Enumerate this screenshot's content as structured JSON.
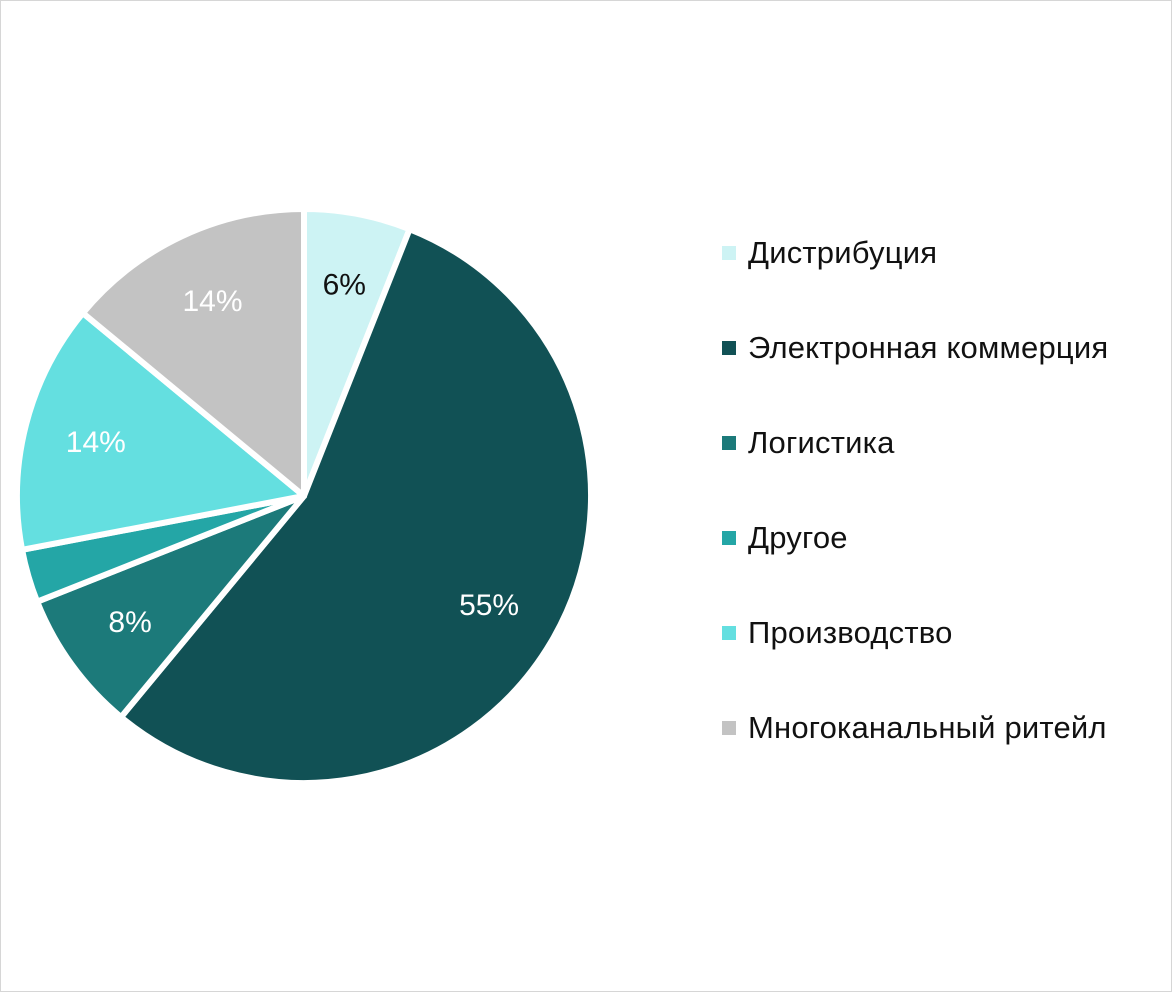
{
  "chart_data": {
    "type": "pie",
    "title": "",
    "start_angle_deg": 0,
    "direction": "clockwise",
    "slice_separator_color": "#ffffff",
    "legend_placement": "right",
    "slices": [
      {
        "name": "Дистрибуция",
        "value": 6,
        "label": "6%",
        "color": "#cdf3f4",
        "label_color": "#111111"
      },
      {
        "name": "Электронная коммерция",
        "value": 55,
        "label": "55%",
        "color": "#115155",
        "label_color": "#ffffff"
      },
      {
        "name": "Логистика",
        "value": 8,
        "label": "8%",
        "color": "#1c7a7a",
        "label_color": "#ffffff"
      },
      {
        "name": "Другое",
        "value": 3,
        "label": "",
        "color": "#24a6a6",
        "label_color": "#ffffff"
      },
      {
        "name": "Производство",
        "value": 14,
        "label": "14%",
        "color": "#64dfe0",
        "label_color": "#ffffff"
      },
      {
        "name": "Многоканальный ритейл",
        "value": 14,
        "label": "14%",
        "color": "#c3c3c3",
        "label_color": "#ffffff"
      }
    ]
  }
}
